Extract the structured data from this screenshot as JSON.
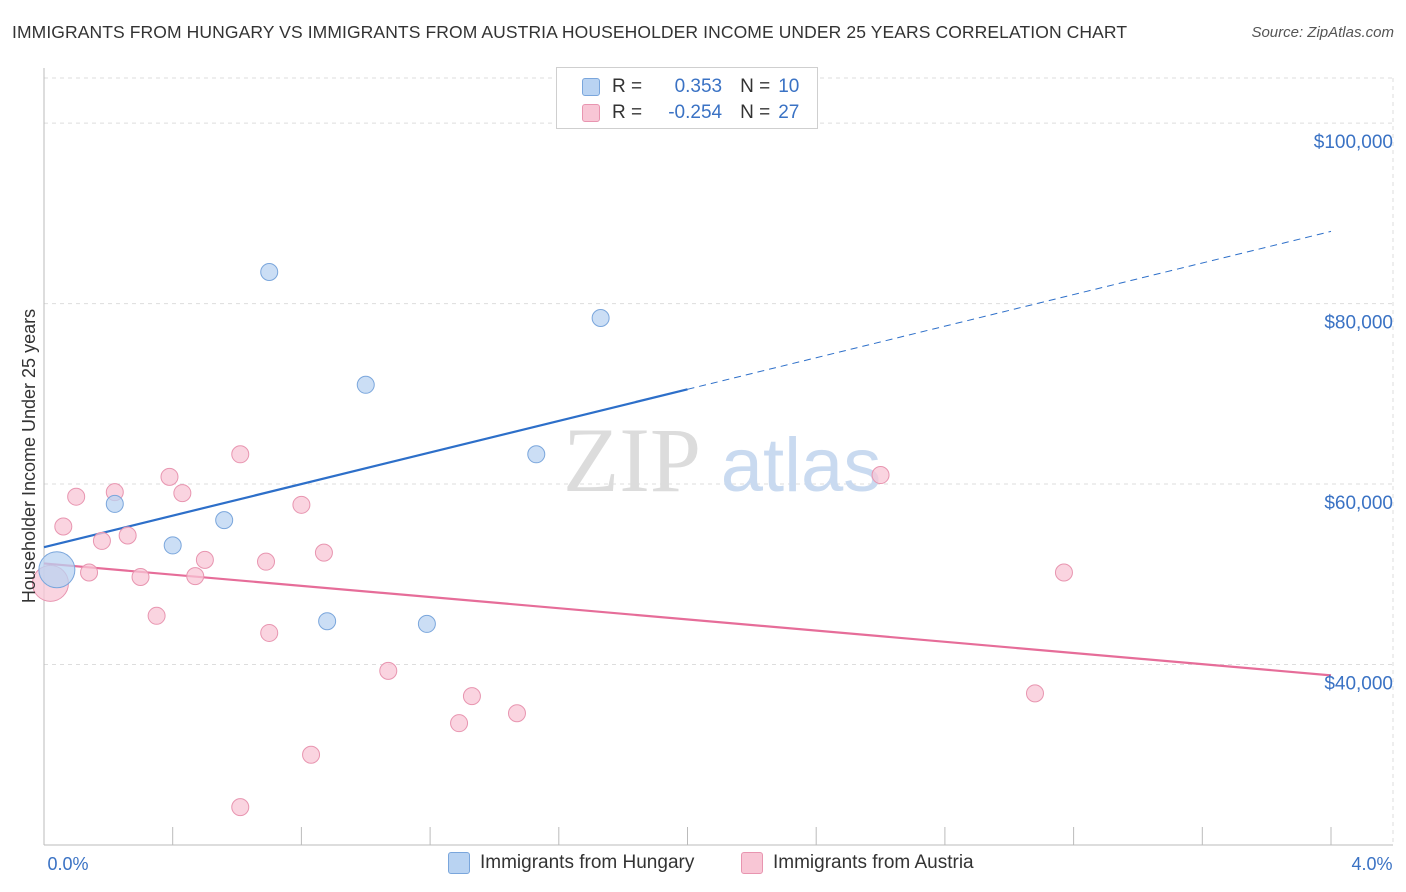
{
  "title": "IMMIGRANTS FROM HUNGARY VS IMMIGRANTS FROM AUSTRIA HOUSEHOLDER INCOME UNDER 25 YEARS CORRELATION CHART",
  "source": "Source: ZipAtlas.com",
  "watermark": {
    "part1": "ZIP",
    "part2": "atlas"
  },
  "legend": {
    "r_label": "R =",
    "n_label": "N =",
    "hungary": {
      "r": "0.353",
      "n": "10"
    },
    "austria": {
      "r": "-0.254",
      "n": "27"
    }
  },
  "colors": {
    "hungary_fill": "#b9d3f2",
    "hungary_stroke": "#7aa6dc",
    "hungary_line": "#2d6fc9",
    "austria_fill": "#f8c6d5",
    "austria_stroke": "#e895b0",
    "austria_line": "#e66d99",
    "axis_label": "#3a72c4",
    "grid": "#dddddd"
  },
  "chart_data": {
    "type": "scatter",
    "title": "IMMIGRANTS FROM HUNGARY VS IMMIGRANTS FROM AUSTRIA HOUSEHOLDER INCOME UNDER 25 YEARS CORRELATION CHART",
    "xlabel": "",
    "ylabel": "Householder Income Under 25 years",
    "xlim": [
      0,
      4
    ],
    "ylim": [
      20000,
      105000
    ],
    "x_tick_labels": [
      "0.0%",
      "4.0%"
    ],
    "y_ticks": [
      40000,
      60000,
      80000,
      100000
    ],
    "y_tick_labels": [
      "$40,000",
      "$60,000",
      "$80,000",
      "$100,000"
    ],
    "legend_position": "top-center",
    "series": [
      {
        "name": "Immigrants from Hungary",
        "points": [
          {
            "x": 0.04,
            "y": 50500,
            "size": "large"
          },
          {
            "x": 0.22,
            "y": 57800
          },
          {
            "x": 0.4,
            "y": 53200
          },
          {
            "x": 0.56,
            "y": 56000
          },
          {
            "x": 0.7,
            "y": 83500
          },
          {
            "x": 0.88,
            "y": 44800
          },
          {
            "x": 1.0,
            "y": 71000
          },
          {
            "x": 1.19,
            "y": 44500
          },
          {
            "x": 1.53,
            "y": 63300
          },
          {
            "x": 1.73,
            "y": 78400
          }
        ],
        "trend": {
          "x_start": 0,
          "y_start": 53000,
          "x_solid_end": 2.0,
          "y_solid_end": 70500,
          "x_dash_end": 4.0,
          "y_dash_end": 88000
        }
      },
      {
        "name": "Immigrants from Austria",
        "points": [
          {
            "x": 0.02,
            "y": 49000,
            "size": "large"
          },
          {
            "x": 0.06,
            "y": 55300
          },
          {
            "x": 0.1,
            "y": 58600
          },
          {
            "x": 0.14,
            "y": 50200
          },
          {
            "x": 0.18,
            "y": 53700
          },
          {
            "x": 0.22,
            "y": 59100
          },
          {
            "x": 0.26,
            "y": 54300
          },
          {
            "x": 0.3,
            "y": 49700
          },
          {
            "x": 0.35,
            "y": 45400
          },
          {
            "x": 0.39,
            "y": 60800
          },
          {
            "x": 0.43,
            "y": 59000
          },
          {
            "x": 0.47,
            "y": 49800
          },
          {
            "x": 0.5,
            "y": 51600
          },
          {
            "x": 0.61,
            "y": 24200
          },
          {
            "x": 0.61,
            "y": 63300
          },
          {
            "x": 0.69,
            "y": 51400
          },
          {
            "x": 0.7,
            "y": 43500
          },
          {
            "x": 0.8,
            "y": 57700
          },
          {
            "x": 0.83,
            "y": 30000
          },
          {
            "x": 0.87,
            "y": 52400
          },
          {
            "x": 1.07,
            "y": 39300
          },
          {
            "x": 1.29,
            "y": 33500
          },
          {
            "x": 1.33,
            "y": 36500
          },
          {
            "x": 1.47,
            "y": 34600
          },
          {
            "x": 2.6,
            "y": 61000
          },
          {
            "x": 3.08,
            "y": 36800
          },
          {
            "x": 3.17,
            "y": 50200
          }
        ],
        "trend": {
          "x_start": 0,
          "y_start": 51200,
          "x_end": 4.0,
          "y_end": 38800
        }
      }
    ]
  }
}
